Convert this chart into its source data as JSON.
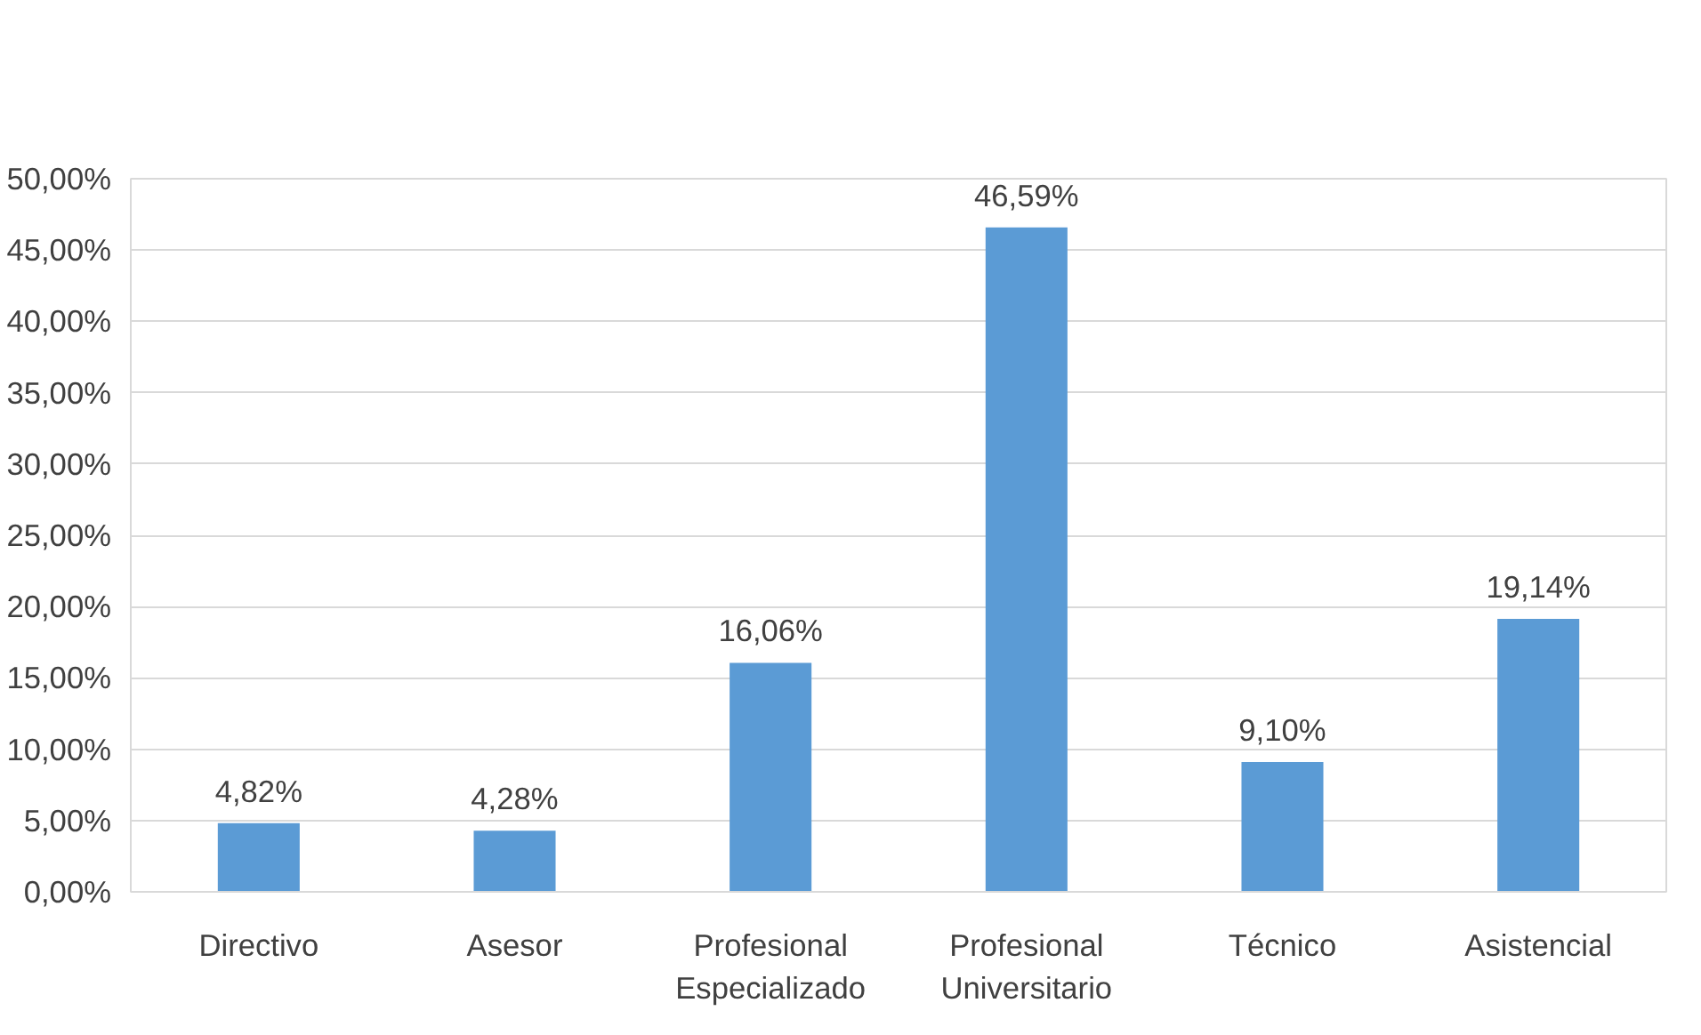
{
  "chart_data": {
    "type": "bar",
    "categories": [
      "Directivo",
      "Asesor",
      "Profesional Especializado",
      "Profesional Universitario",
      "Técnico",
      "Asistencial"
    ],
    "values": [
      4.82,
      4.28,
      16.06,
      46.59,
      9.1,
      19.14
    ],
    "value_labels": [
      "4,82%",
      "4,28%",
      "16,06%",
      "46,59%",
      "9,10%",
      "19,14%"
    ],
    "color": "#5b9bd5",
    "ylim": [
      0,
      50
    ],
    "yticks": [
      {
        "value": 0,
        "label": "0,00%"
      },
      {
        "value": 5,
        "label": "5,00%"
      },
      {
        "value": 10,
        "label": "10,00%"
      },
      {
        "value": 15,
        "label": "15,00%"
      },
      {
        "value": 20,
        "label": "20,00%"
      },
      {
        "value": 25,
        "label": "25,00%"
      },
      {
        "value": 30,
        "label": "30,00%"
      },
      {
        "value": 35,
        "label": "35,00%"
      },
      {
        "value": 40,
        "label": "40,00%"
      },
      {
        "value": 45,
        "label": "45,00%"
      },
      {
        "value": 50,
        "label": "50,00%"
      }
    ],
    "grid": "y"
  }
}
